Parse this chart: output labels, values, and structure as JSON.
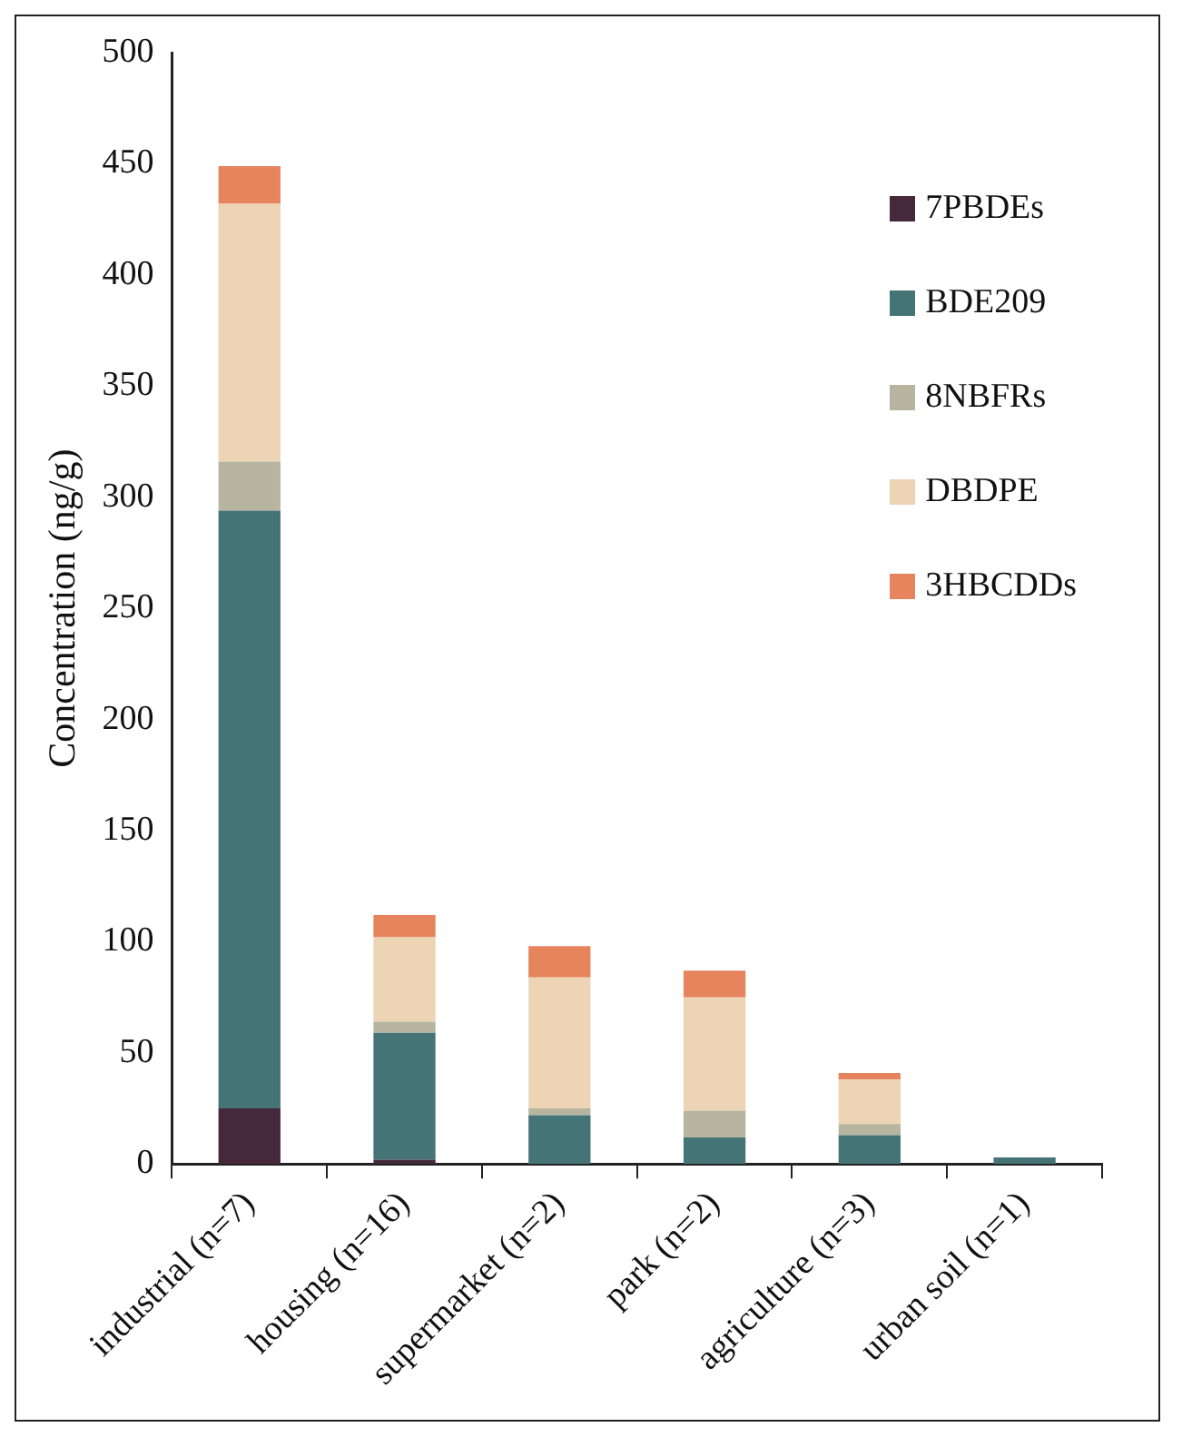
{
  "chart_data": {
    "type": "bar",
    "stacked": true,
    "ylabel": "Concentration (ng/g)",
    "categories": [
      "industrial (n=7)",
      "housing (n=16)",
      "supermarket (n=2)",
      "park (n=2)",
      "agriculture (n=3)",
      "urban soil (n=1)"
    ],
    "series": [
      {
        "name": "7PBDEs",
        "color": "#46283c",
        "values": [
          25,
          2,
          null,
          null,
          null,
          null
        ]
      },
      {
        "name": "BDE209",
        "color": "#457477",
        "values": [
          269,
          57,
          22,
          12,
          13,
          3
        ]
      },
      {
        "name": "8NBFRs",
        "color": "#b7b59f",
        "values": [
          22,
          5,
          3,
          12,
          5,
          null
        ]
      },
      {
        "name": "DBDPE",
        "color": "#edd4b5",
        "values": [
          116,
          38,
          59,
          51,
          20,
          0
        ]
      },
      {
        "name": "3HBCDDs",
        "color": "#e6845e",
        "values": [
          17,
          10,
          14,
          12,
          3,
          0
        ]
      }
    ],
    "ylim": [
      0,
      500
    ],
    "yticks": [
      0,
      50,
      100,
      150,
      200,
      250,
      300,
      350,
      400,
      450,
      500
    ],
    "grid": false,
    "legend": "top right"
  }
}
